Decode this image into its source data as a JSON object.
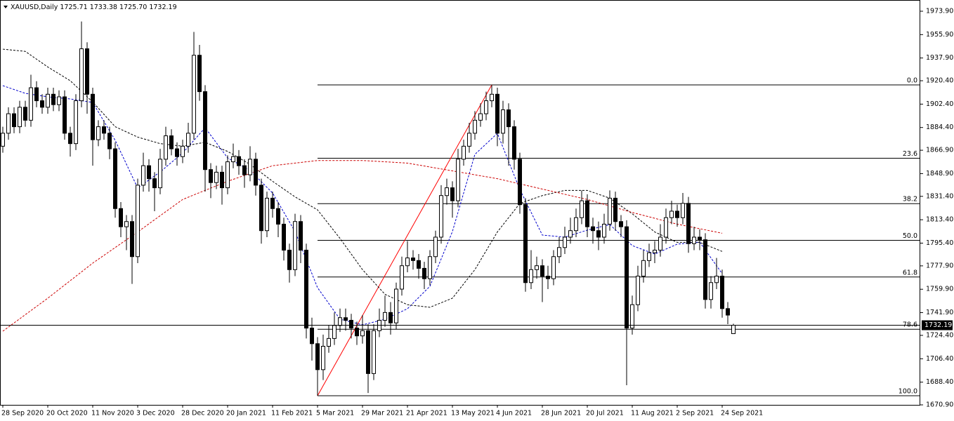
{
  "chart_data": {
    "type": "candlestick",
    "symbol": "XAUUSD,Daily",
    "ohlc_labels": [
      "1725.71",
      "1733.38",
      "1725.70",
      "1732.19"
    ],
    "categories": [
      "28 Sep 2020",
      null,
      null,
      null,
      null,
      null,
      null,
      null,
      "20 Oct 2020",
      null,
      null,
      null,
      null,
      null,
      null,
      null,
      "11 Nov 2020",
      null,
      null,
      null,
      null,
      null,
      null,
      null,
      "3 Dec 2020",
      null,
      null,
      null,
      null,
      null,
      null,
      null,
      "28 Dec 2020",
      null,
      null,
      null,
      null,
      null,
      null,
      null,
      "20 Jan 2021",
      null,
      null,
      null,
      null,
      null,
      null,
      null,
      "11 Feb 2021",
      null,
      null,
      null,
      null,
      null,
      null,
      null,
      "5 Mar 2021",
      null,
      null,
      null,
      null,
      null,
      null,
      null,
      "29 Mar 2021",
      null,
      null,
      null,
      null,
      null,
      null,
      null,
      "21 Apr 2021",
      null,
      null,
      null,
      null,
      null,
      null,
      null,
      "13 May 2021",
      null,
      null,
      null,
      null,
      null,
      null,
      null,
      "4 Jun 2021",
      null,
      null,
      null,
      null,
      null,
      null,
      null,
      "28 Jun 2021",
      null,
      null,
      null,
      null,
      null,
      null,
      null,
      "20 Jul 2021",
      null,
      null,
      null,
      null,
      null,
      null,
      null,
      "11 Aug 2021",
      null,
      null,
      null,
      null,
      null,
      null,
      null,
      "2 Sep 2021",
      null,
      null,
      null,
      null,
      null,
      null,
      null,
      "24 Sep 2021",
      null,
      null
    ],
    "open": [
      1870,
      1880,
      1895,
      1885,
      1900,
      1890,
      1915,
      1905,
      1900,
      1910,
      1902,
      1908,
      1880,
      1872,
      1905,
      1945,
      1910,
      1875,
      1885,
      1880,
      1868,
      1822,
      1808,
      1812,
      1785,
      1840,
      1855,
      1845,
      1838,
      1860,
      1878,
      1868,
      1862,
      1870,
      1880,
      1940,
      1912,
      1852,
      1842,
      1850,
      1838,
      1858,
      1862,
      1855,
      1848,
      1860,
      1840,
      1805,
      1830,
      1822,
      1810,
      1790,
      1775,
      1812,
      1790,
      1730,
      1718,
      1698,
      1716,
      1722,
      1732,
      1738,
      1736,
      1730,
      1724,
      1728,
      1695,
      1728,
      1736,
      1742,
      1734,
      1760,
      1778,
      1784,
      1782,
      1776,
      1768,
      1785,
      1800,
      1832,
      1838,
      1828,
      1860,
      1870,
      1880,
      1890,
      1895,
      1905,
      1910,
      1880,
      1898,
      1885,
      1860,
      1825,
      1765,
      1775,
      1778,
      1770,
      1768,
      1785,
      1792,
      1800,
      1805,
      1815,
      1828,
      1808,
      1805,
      1800,
      1810,
      1830,
      1812,
      1808,
      1730,
      1748,
      1770,
      1782,
      1788,
      1790,
      1800,
      1815,
      1820,
      1815,
      1826,
      1795,
      1800,
      1798,
      1752,
      1765,
      1770,
      1745,
      1725.71
    ],
    "high": [
      1885,
      1900,
      1900,
      1905,
      1905,
      1925,
      1920,
      1910,
      1915,
      1915,
      1913,
      1913,
      1885,
      1910,
      1966,
      1950,
      1915,
      1890,
      1890,
      1885,
      1873,
      1827,
      1817,
      1817,
      1845,
      1865,
      1860,
      1850,
      1868,
      1885,
      1883,
      1873,
      1875,
      1888,
      1958,
      1948,
      1917,
      1857,
      1855,
      1855,
      1863,
      1872,
      1867,
      1860,
      1870,
      1865,
      1845,
      1835,
      1835,
      1827,
      1815,
      1795,
      1818,
      1817,
      1795,
      1738,
      1723,
      1725,
      1732,
      1742,
      1745,
      1745,
      1741,
      1735,
      1740,
      1733,
      1733,
      1745,
      1755,
      1750,
      1765,
      1785,
      1797,
      1790,
      1787,
      1781,
      1790,
      1805,
      1840,
      1845,
      1843,
      1868,
      1875,
      1888,
      1897,
      1903,
      1912,
      1917,
      1915,
      1905,
      1903,
      1890,
      1865,
      1830,
      1790,
      1785,
      1783,
      1778,
      1790,
      1800,
      1808,
      1815,
      1822,
      1836,
      1833,
      1815,
      1812,
      1818,
      1836,
      1835,
      1817,
      1813,
      1755,
      1778,
      1790,
      1795,
      1797,
      1810,
      1822,
      1828,
      1825,
      1834,
      1831,
      1808,
      1806,
      1803,
      1770,
      1784,
      1775,
      1750,
      1733.38
    ],
    "low": [
      1865,
      1875,
      1880,
      1880,
      1885,
      1885,
      1900,
      1895,
      1895,
      1897,
      1897,
      1875,
      1862,
      1867,
      1900,
      1895,
      1855,
      1870,
      1875,
      1860,
      1815,
      1800,
      1790,
      1764,
      1780,
      1835,
      1835,
      1820,
      1833,
      1855,
      1863,
      1855,
      1857,
      1865,
      1875,
      1905,
      1835,
      1830,
      1837,
      1825,
      1833,
      1853,
      1848,
      1838,
      1843,
      1832,
      1795,
      1800,
      1815,
      1800,
      1782,
      1765,
      1770,
      1780,
      1722,
      1705,
      1677.9,
      1690,
      1711,
      1717,
      1727,
      1728,
      1722,
      1717,
      1718,
      1680,
      1690,
      1723,
      1731,
      1725,
      1729,
      1755,
      1773,
      1775,
      1768,
      1760,
      1763,
      1780,
      1795,
      1825,
      1815,
      1823,
      1855,
      1865,
      1875,
      1885,
      1890,
      1900,
      1870,
      1872,
      1855,
      1852,
      1818,
      1758,
      1760,
      1768,
      1750,
      1760,
      1763,
      1780,
      1787,
      1795,
      1800,
      1810,
      1800,
      1795,
      1790,
      1795,
      1805,
      1805,
      1800,
      1686,
      1725,
      1743,
      1765,
      1777,
      1780,
      1785,
      1795,
      1810,
      1808,
      1810,
      1788,
      1790,
      1790,
      1745,
      1745,
      1760,
      1738,
      1733,
      1725.7
    ],
    "close": [
      1880,
      1895,
      1885,
      1900,
      1890,
      1915,
      1905,
      1900,
      1910,
      1902,
      1908,
      1880,
      1872,
      1905,
      1945,
      1910,
      1875,
      1885,
      1880,
      1868,
      1822,
      1808,
      1812,
      1785,
      1840,
      1855,
      1845,
      1838,
      1860,
      1878,
      1868,
      1862,
      1870,
      1880,
      1940,
      1912,
      1852,
      1842,
      1850,
      1838,
      1858,
      1862,
      1855,
      1848,
      1860,
      1840,
      1805,
      1830,
      1822,
      1810,
      1790,
      1775,
      1812,
      1790,
      1730,
      1718,
      1698,
      1716,
      1722,
      1732,
      1738,
      1736,
      1730,
      1724,
      1728,
      1695,
      1728,
      1736,
      1742,
      1734,
      1760,
      1778,
      1784,
      1782,
      1776,
      1768,
      1785,
      1800,
      1832,
      1838,
      1828,
      1860,
      1870,
      1880,
      1890,
      1895,
      1905,
      1910,
      1880,
      1898,
      1885,
      1860,
      1825,
      1765,
      1775,
      1778,
      1770,
      1768,
      1785,
      1792,
      1800,
      1805,
      1815,
      1828,
      1808,
      1805,
      1800,
      1810,
      1830,
      1812,
      1808,
      1730,
      1748,
      1770,
      1782,
      1788,
      1790,
      1800,
      1815,
      1820,
      1815,
      1826,
      1795,
      1800,
      1798,
      1752,
      1765,
      1770,
      1745,
      1740,
      1732.19
    ],
    "ylim": [
      1670.9,
      1973.9
    ],
    "yticks": [
      {
        "value": 1973.9,
        "label": "1973.90"
      },
      {
        "value": 1955.9,
        "label": "1955.90"
      },
      {
        "value": 1937.9,
        "label": "1937.90"
      },
      {
        "value": 1920.4,
        "label": "1920.40"
      },
      {
        "value": 1902.4,
        "label": "1902.40"
      },
      {
        "value": 1884.4,
        "label": "1884.40"
      },
      {
        "value": 1866.9,
        "label": "1866.90"
      },
      {
        "value": 1848.9,
        "label": "1848.90"
      },
      {
        "value": 1831.4,
        "label": "1831.40"
      },
      {
        "value": 1813.4,
        "label": "1813.40"
      },
      {
        "value": 1795.4,
        "label": "1795.40"
      },
      {
        "value": 1777.9,
        "label": "1777.90"
      },
      {
        "value": 1759.9,
        "label": "1759.90"
      },
      {
        "value": 1741.9,
        "label": "1741.90"
      },
      {
        "value": 1724.4,
        "label": "1724.40"
      },
      {
        "value": 1706.4,
        "label": "1706.40"
      },
      {
        "value": 1688.4,
        "label": "1688.40"
      },
      {
        "value": 1670.9,
        "label": "1670.90"
      }
    ],
    "moving_averages": [
      {
        "color": "#0000cc",
        "x": [
          0,
          4,
          8,
          12,
          16,
          20,
          24,
          28,
          32,
          36,
          40,
          44,
          48,
          52,
          56,
          60,
          64,
          68,
          72,
          76,
          80,
          84,
          88,
          92,
          96,
          100,
          104,
          108,
          112,
          116,
          120,
          124,
          128
        ],
        "values": [
          1916.6,
          1910.7,
          1908,
          1906.4,
          1903.7,
          1874.5,
          1837.8,
          1850.2,
          1864.8,
          1884.2,
          1861,
          1851.3,
          1834,
          1804.3,
          1761.1,
          1736.8,
          1732.5,
          1736.8,
          1744.9,
          1762.2,
          1804.3,
          1863.7,
          1879.9,
          1836.7,
          1801.6,
          1800,
          1805.4,
          1809.7,
          1793.5,
          1787,
          1794.6,
          1796.2,
          1771.9
        ]
      },
      {
        "color": "#000000",
        "x": [
          0,
          4,
          8,
          12,
          16,
          20,
          24,
          28,
          32,
          36,
          40,
          44,
          48,
          52,
          56,
          60,
          64,
          68,
          72,
          76,
          80,
          84,
          88,
          92,
          96,
          100,
          104,
          108,
          112,
          116,
          120,
          124,
          128
        ],
        "values": [
          1944.7,
          1943,
          1931,
          1920.4,
          1904,
          1885,
          1877,
          1872,
          1870,
          1873,
          1866,
          1856,
          1843,
          1831,
          1821,
          1799,
          1775,
          1756,
          1748,
          1746,
          1753,
          1775,
          1804,
          1826,
          1832,
          1836,
          1836,
          1830,
          1818,
          1804,
          1796,
          1796,
          1789
        ]
      },
      {
        "color": "#cc0000",
        "x": [
          0,
          8,
          16,
          24,
          32,
          40,
          48,
          56,
          64,
          72,
          80,
          88,
          96,
          104,
          112,
          120,
          128
        ],
        "values": [
          1727.6,
          1753,
          1780,
          1804,
          1829,
          1843,
          1855,
          1859,
          1859,
          1857,
          1851,
          1845,
          1837,
          1829,
          1819,
          1810,
          1803
        ]
      }
    ],
    "fibonacci": {
      "x_low": 56,
      "x_high": 87,
      "high": 1917.2,
      "low": 1677.9,
      "line_color": "#000000",
      "trend_color": "#ff0000",
      "levels": [
        {
          "value": 0,
          "label": "0.0"
        },
        23.6,
        38.2,
        {
          "value": 50,
          "label": "50.0"
        },
        61.8,
        78.6,
        {
          "value": 100,
          "label": "100.0"
        }
      ]
    }
  }
}
